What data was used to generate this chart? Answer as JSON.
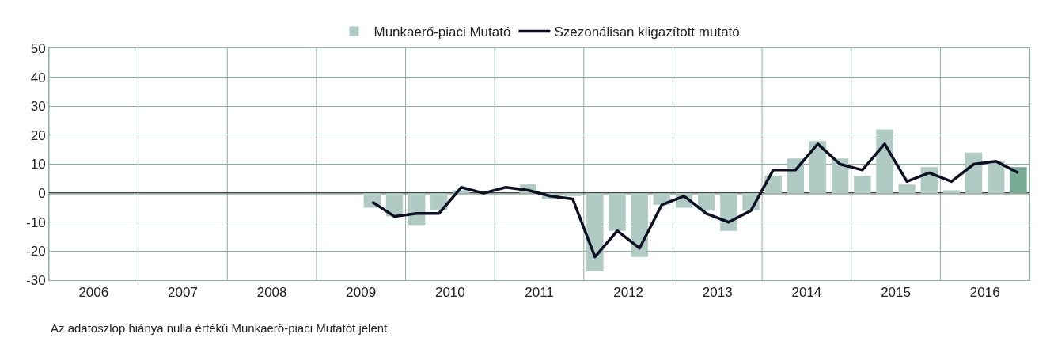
{
  "chart_data": {
    "type": "bar",
    "x": [
      2009.625,
      2009.875,
      2010.125,
      2010.375,
      2010.625,
      2010.875,
      2011.125,
      2011.375,
      2011.625,
      2011.875,
      2012.125,
      2012.375,
      2012.625,
      2012.875,
      2013.125,
      2013.375,
      2013.625,
      2013.875,
      2014.125,
      2014.375,
      2014.625,
      2014.875,
      2015.125,
      2015.375,
      2015.625,
      2015.875,
      2016.125,
      2016.375,
      2016.625,
      2016.875
    ],
    "series": [
      {
        "name": "Munkaerő-piaci Mutató",
        "colors": [
          "#b0cbc3",
          "#b0cbc3",
          "#b0cbc3",
          "#b0cbc3",
          "#b0cbc3",
          "#b0cbc3",
          "#b0cbc3",
          "#b0cbc3",
          "#b0cbc3",
          "#b0cbc3",
          "#b0cbc3",
          "#b0cbc3",
          "#b0cbc3",
          "#b0cbc3",
          "#b0cbc3",
          "#b0cbc3",
          "#b0cbc3",
          "#b0cbc3",
          "#b0cbc3",
          "#b0cbc3",
          "#b0cbc3",
          "#b0cbc3",
          "#b0cbc3",
          "#b0cbc3",
          "#b0cbc3",
          "#b0cbc3",
          "#b0cbc3",
          "#b0cbc3",
          "#b0cbc3",
          "#7aab95"
        ],
        "values": [
          -5,
          -8,
          -11,
          -6,
          1,
          0,
          0,
          3,
          -2,
          -1,
          -27,
          -13,
          -22,
          -4,
          -5,
          -6,
          -13,
          -6,
          6,
          12,
          18,
          12,
          6,
          22,
          3,
          9,
          1,
          14,
          11,
          9
        ]
      },
      {
        "name": "Szezonálisan kiigazított mutató",
        "type": "line",
        "color": "#0d1022",
        "values": [
          -3,
          -8,
          -7,
          -7,
          2,
          0,
          2,
          1,
          -1,
          -2,
          -22,
          -13,
          -19,
          -4,
          -1,
          -7,
          -10,
          -6,
          8,
          8,
          17,
          10,
          8,
          17,
          4,
          7,
          4,
          10,
          11,
          7
        ]
      }
    ],
    "xlim": [
      2006,
      2017
    ],
    "xticks": [
      {
        "value": 2006,
        "label": null
      },
      {
        "value": 2006.5,
        "label": "2006"
      },
      {
        "value": 2007,
        "label": null
      },
      {
        "value": 2007.5,
        "label": "2007"
      },
      {
        "value": 2008,
        "label": null
      },
      {
        "value": 2008.5,
        "label": "2008"
      },
      {
        "value": 2009,
        "label": null
      },
      {
        "value": 2009.5,
        "label": "2009"
      },
      {
        "value": 2010,
        "label": null
      },
      {
        "value": 2010.5,
        "label": "2010"
      },
      {
        "value": 2011,
        "label": null
      },
      {
        "value": 2011.5,
        "label": "2011"
      },
      {
        "value": 2012,
        "label": null
      },
      {
        "value": 2012.5,
        "label": "2012"
      },
      {
        "value": 2013,
        "label": null
      },
      {
        "value": 2013.5,
        "label": "2013"
      },
      {
        "value": 2014,
        "label": null
      },
      {
        "value": 2014.5,
        "label": "2014"
      },
      {
        "value": 2015,
        "label": null
      },
      {
        "value": 2015.5,
        "label": "2015"
      },
      {
        "value": 2016,
        "label": null
      },
      {
        "value": 2016.5,
        "label": "2016"
      },
      {
        "value": 2017,
        "label": null
      }
    ],
    "ylim": [
      -30,
      50
    ],
    "yticks": [
      -30,
      -20,
      -10,
      0,
      10,
      20,
      30,
      40,
      50
    ],
    "grid": true,
    "legend": "top",
    "marker": "none",
    "line_style": "solid",
    "ref_lines": [
      {
        "axis": "y",
        "value": 0,
        "color": "#000000"
      }
    ],
    "annotations": [
      "Az adatoszlop hiánya nulla értékű Munkaerő-piaci Mutatót jelent."
    ]
  }
}
